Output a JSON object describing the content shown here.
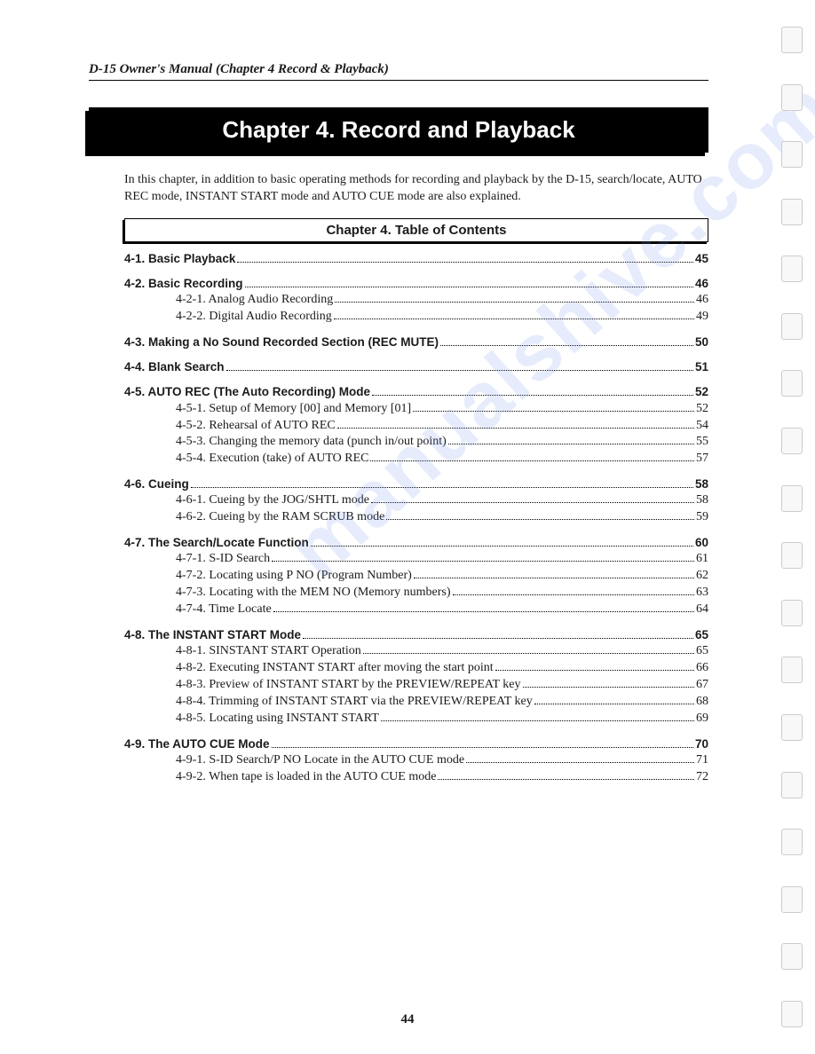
{
  "header": "D-15 Owner's Manual (Chapter 4 Record & Playback)",
  "chapter_title": "Chapter 4. Record and Playback",
  "intro": "In this chapter, in addition to basic operating methods for recording and playback by the D-15, search/locate, AUTO REC mode, INSTANT START mode and AUTO CUE mode are also explained.",
  "toc_title": "Chapter 4.  Table of Contents",
  "page_number": "44",
  "watermark": "manualshive.com",
  "toc": [
    {
      "label": "4-1. Basic Playback",
      "page": "45",
      "subs": []
    },
    {
      "label": "4-2. Basic Recording",
      "page": "46",
      "subs": [
        {
          "label": "4-2-1. Analog Audio Recording",
          "page": "46"
        },
        {
          "label": "4-2-2. Digital Audio Recording",
          "page": "49"
        }
      ]
    },
    {
      "label": "4-3. Making a No Sound Recorded Section (REC MUTE)",
      "page": "50",
      "subs": []
    },
    {
      "label": "4-4. Blank Search",
      "page": "51",
      "subs": []
    },
    {
      "label": "4-5. AUTO REC (The Auto Recording) Mode",
      "page": "52",
      "subs": [
        {
          "label": "4-5-1. Setup of Memory [00] and Memory [01]",
          "page": "52"
        },
        {
          "label": "4-5-2. Rehearsal of AUTO REC",
          "page": "54"
        },
        {
          "label": "4-5-3. Changing the memory data (punch in/out point)",
          "page": "55"
        },
        {
          "label": "4-5-4. Execution (take) of AUTO REC",
          "page": "57"
        }
      ]
    },
    {
      "label": "4-6. Cueing",
      "page": "58",
      "subs": [
        {
          "label": "4-6-1. Cueing by the JOG/SHTL mode",
          "page": "58"
        },
        {
          "label": "4-6-2. Cueing by the RAM SCRUB mode",
          "page": "59"
        }
      ]
    },
    {
      "label": "4-7. The Search/Locate Function",
      "page": "60",
      "subs": [
        {
          "label": "4-7-1. S-ID Search",
          "page": "61"
        },
        {
          "label": "4-7-2. Locating using P NO (Program Number)",
          "page": "62"
        },
        {
          "label": "4-7-3. Locating with the MEM NO (Memory numbers)",
          "page": "63"
        },
        {
          "label": "4-7-4. Time Locate",
          "page": "64"
        }
      ]
    },
    {
      "label": "4-8. The INSTANT START Mode",
      "page": "65",
      "subs": [
        {
          "label": "4-8-1. SINSTANT START Operation",
          "page": "65"
        },
        {
          "label": "4-8-2. Executing INSTANT START after moving the start point",
          "page": "66"
        },
        {
          "label": "4-8-3. Preview of INSTANT START by the PREVIEW/REPEAT key",
          "page": "67"
        },
        {
          "label": "4-8-4. Trimming of INSTANT START via the PREVIEW/REPEAT key",
          "page": "68"
        },
        {
          "label": "4-8-5. Locating using INSTANT START",
          "page": "69"
        }
      ]
    },
    {
      "label": "4-9. The AUTO CUE Mode",
      "page": "70",
      "subs": [
        {
          "label": "4-9-1. S-ID Search/P NO Locate in the AUTO CUE mode",
          "page": "71"
        },
        {
          "label": "4-9-2. When tape is loaded in the AUTO CUE mode",
          "page": "72"
        }
      ]
    }
  ]
}
